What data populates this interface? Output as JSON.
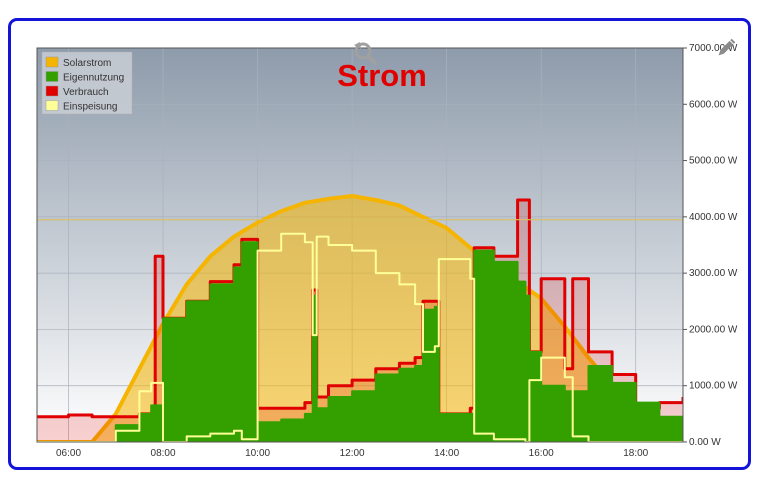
{
  "chart_data": {
    "type": "area",
    "title": "Strom",
    "xlabel": "",
    "ylabel": "",
    "x_ticks": [
      "06:00",
      "08:00",
      "10:00",
      "12:00",
      "14:00",
      "16:00",
      "18:00"
    ],
    "y_ticks": [
      "0.00 W",
      "1000.00 W",
      "2000.00 W",
      "3000.00 W",
      "4000.00 W",
      "5000.00 W",
      "6000.00 W",
      "7000.00 W"
    ],
    "xlim": [
      "05:20",
      "19:00"
    ],
    "ylim": [
      0,
      7000
    ],
    "threshold_line": 3950,
    "grid": true,
    "legend_position": "top-left",
    "series": [
      {
        "name": "Solarstrom",
        "color": "#f5b400",
        "points": [
          [
            "05:20",
            0
          ],
          [
            "06:30",
            0
          ],
          [
            "07:00",
            500
          ],
          [
            "07:30",
            1300
          ],
          [
            "08:00",
            2100
          ],
          [
            "08:30",
            2800
          ],
          [
            "09:00",
            3300
          ],
          [
            "09:30",
            3650
          ],
          [
            "10:00",
            3900
          ],
          [
            "10:30",
            4100
          ],
          [
            "11:00",
            4250
          ],
          [
            "11:30",
            4320
          ],
          [
            "12:00",
            4370
          ],
          [
            "12:30",
            4300
          ],
          [
            "13:00",
            4200
          ],
          [
            "13:30",
            4000
          ],
          [
            "14:00",
            3800
          ],
          [
            "14:30",
            3450
          ],
          [
            "15:00",
            3150
          ],
          [
            "15:30",
            2850
          ],
          [
            "16:00",
            2550
          ],
          [
            "16:30",
            2050
          ],
          [
            "17:00",
            1500
          ],
          [
            "17:30",
            1000
          ],
          [
            "18:00",
            650
          ],
          [
            "18:30",
            400
          ],
          [
            "19:00",
            300
          ]
        ]
      },
      {
        "name": "Eigennutzung",
        "color": "#33a000",
        "points": [
          [
            "05:20",
            0
          ],
          [
            "06:40",
            0
          ],
          [
            "07:00",
            300
          ],
          [
            "07:30",
            500
          ],
          [
            "07:45",
            650
          ],
          [
            "08:00",
            2200
          ],
          [
            "08:30",
            2500
          ],
          [
            "09:00",
            2800
          ],
          [
            "09:30",
            3100
          ],
          [
            "09:40",
            3550
          ],
          [
            "09:55",
            3550
          ],
          [
            "10:00",
            350
          ],
          [
            "10:30",
            400
          ],
          [
            "11:00",
            500
          ],
          [
            "11:10",
            2600
          ],
          [
            "11:15",
            600
          ],
          [
            "11:30",
            800
          ],
          [
            "12:00",
            900
          ],
          [
            "12:30",
            1200
          ],
          [
            "13:00",
            1300
          ],
          [
            "13:20",
            1350
          ],
          [
            "13:30",
            2350
          ],
          [
            "13:45",
            2400
          ],
          [
            "13:50",
            500
          ],
          [
            "14:30",
            500
          ],
          [
            "14:35",
            3400
          ],
          [
            "15:00",
            3200
          ],
          [
            "15:30",
            2850
          ],
          [
            "15:40",
            2600
          ],
          [
            "15:45",
            1600
          ],
          [
            "16:00",
            1000
          ],
          [
            "16:30",
            900
          ],
          [
            "17:00",
            1350
          ],
          [
            "17:30",
            1050
          ],
          [
            "18:00",
            700
          ],
          [
            "18:30",
            450
          ],
          [
            "19:00",
            300
          ]
        ]
      },
      {
        "name": "Verbrauch",
        "color": "#e00000",
        "points": [
          [
            "05:20",
            450
          ],
          [
            "06:00",
            480
          ],
          [
            "06:30",
            450
          ],
          [
            "07:00",
            450
          ],
          [
            "07:30",
            500
          ],
          [
            "07:50",
            3300
          ],
          [
            "08:00",
            2200
          ],
          [
            "08:30",
            2500
          ],
          [
            "09:00",
            2850
          ],
          [
            "09:30",
            3150
          ],
          [
            "09:40",
            3600
          ],
          [
            "09:55",
            3600
          ],
          [
            "10:00",
            600
          ],
          [
            "10:30",
            600
          ],
          [
            "11:00",
            700
          ],
          [
            "11:10",
            2700
          ],
          [
            "11:15",
            800
          ],
          [
            "11:30",
            1000
          ],
          [
            "12:00",
            1100
          ],
          [
            "12:30",
            1300
          ],
          [
            "13:00",
            1400
          ],
          [
            "13:20",
            1500
          ],
          [
            "13:30",
            2500
          ],
          [
            "13:45",
            2500
          ],
          [
            "13:50",
            500
          ],
          [
            "14:30",
            600
          ],
          [
            "14:35",
            3450
          ],
          [
            "15:00",
            3300
          ],
          [
            "15:30",
            4300
          ],
          [
            "15:40",
            4300
          ],
          [
            "15:45",
            1600
          ],
          [
            "16:00",
            2900
          ],
          [
            "16:30",
            1300
          ],
          [
            "16:40",
            2900
          ],
          [
            "17:00",
            1600
          ],
          [
            "17:30",
            1200
          ],
          [
            "18:00",
            600
          ],
          [
            "18:30",
            700
          ],
          [
            "19:00",
            800
          ]
        ]
      },
      {
        "name": "Einspeisung",
        "color": "#ffff99",
        "points": [
          [
            "05:20",
            0
          ],
          [
            "06:40",
            0
          ],
          [
            "07:00",
            200
          ],
          [
            "07:30",
            900
          ],
          [
            "07:45",
            1050
          ],
          [
            "08:00",
            0
          ],
          [
            "08:30",
            100
          ],
          [
            "09:00",
            150
          ],
          [
            "09:30",
            200
          ],
          [
            "09:40",
            50
          ],
          [
            "09:55",
            50
          ],
          [
            "10:00",
            3400
          ],
          [
            "10:30",
            3700
          ],
          [
            "11:00",
            3550
          ],
          [
            "11:10",
            1900
          ],
          [
            "11:15",
            3650
          ],
          [
            "11:30",
            3500
          ],
          [
            "12:00",
            3400
          ],
          [
            "12:30",
            3000
          ],
          [
            "13:00",
            2800
          ],
          [
            "13:20",
            2450
          ],
          [
            "13:30",
            1600
          ],
          [
            "13:45",
            1700
          ],
          [
            "13:50",
            3250
          ],
          [
            "14:30",
            2900
          ],
          [
            "14:35",
            150
          ],
          [
            "15:00",
            50
          ],
          [
            "15:30",
            50
          ],
          [
            "15:40",
            0
          ],
          [
            "15:45",
            1100
          ],
          [
            "16:00",
            1500
          ],
          [
            "16:30",
            1150
          ],
          [
            "16:40",
            100
          ],
          [
            "17:00",
            0
          ],
          [
            "19:00",
            0
          ]
        ]
      }
    ]
  }
}
